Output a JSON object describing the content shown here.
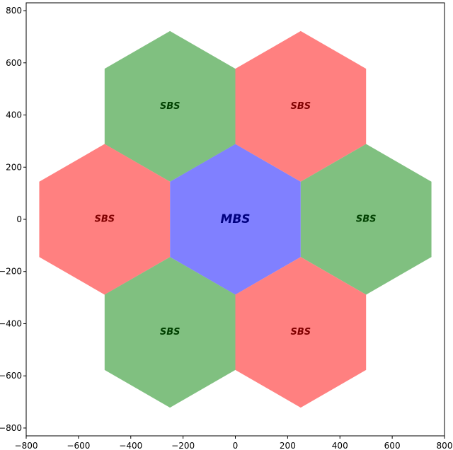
{
  "chart_data": {
    "type": "hexagonal-cell-map",
    "title": "",
    "xlabel": "",
    "ylabel": "",
    "xlim": [
      -800,
      800
    ],
    "ylim": [
      -830,
      830
    ],
    "grid": false,
    "x_ticks": [
      -800,
      -600,
      -400,
      -200,
      0,
      200,
      400,
      600,
      800
    ],
    "y_ticks": [
      -800,
      -600,
      -400,
      -200,
      0,
      200,
      400,
      600,
      800
    ],
    "hex_radius": 288.7,
    "cells": [
      {
        "label": "MBS",
        "cx": 0,
        "cy": 0,
        "color": "#8080ff",
        "text_color": "#000080",
        "font_size": 17
      },
      {
        "label": "SBS",
        "cx": -250,
        "cy": 433,
        "color": "#80c080",
        "text_color": "#004000",
        "font_size": 13
      },
      {
        "label": "SBS",
        "cx": 250,
        "cy": 433,
        "color": "#ff8080",
        "text_color": "#800000",
        "font_size": 13
      },
      {
        "label": "SBS",
        "cx": -500,
        "cy": 0,
        "color": "#ff8080",
        "text_color": "#800000",
        "font_size": 13
      },
      {
        "label": "SBS",
        "cx": 500,
        "cy": 0,
        "color": "#80c080",
        "text_color": "#004000",
        "font_size": 13
      },
      {
        "label": "SBS",
        "cx": -250,
        "cy": -433,
        "color": "#80c080",
        "text_color": "#004000",
        "font_size": 13
      },
      {
        "label": "SBS",
        "cx": 250,
        "cy": -433,
        "color": "#ff8080",
        "text_color": "#800000",
        "font_size": 13
      }
    ]
  }
}
